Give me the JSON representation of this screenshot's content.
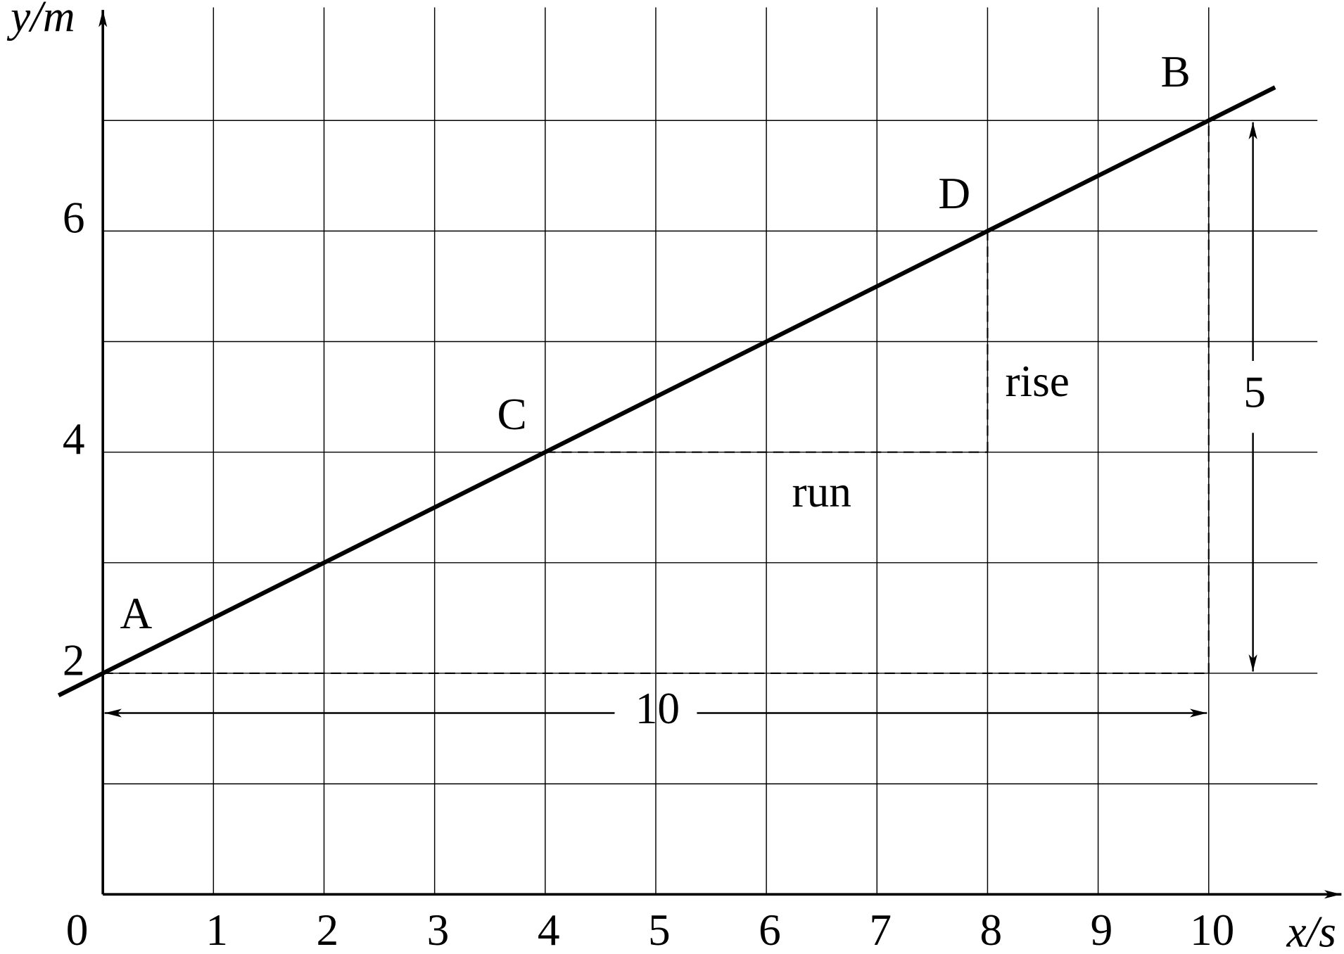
{
  "chart_data": {
    "type": "line",
    "x_label": "x/s",
    "y_label": "y/m",
    "x": [
      -0.4,
      0,
      4,
      8,
      10,
      10.6
    ],
    "series": [
      {
        "color": "#000000",
        "values": [
          1.8,
          2,
          4,
          6,
          7,
          7.3
        ]
      }
    ],
    "xlim": [
      0,
      11.2
    ],
    "ylim": [
      0,
      8
    ],
    "xticks": [
      0,
      1,
      2,
      3,
      4,
      5,
      6,
      7,
      8,
      9,
      10
    ],
    "yticks": [
      2,
      4,
      6
    ],
    "minor_yticks": [
      1,
      3,
      5,
      7
    ],
    "grid": true,
    "points": [
      {
        "label": "A",
        "x": 0,
        "y": 2,
        "label_at": [
          0.3,
          2.5
        ]
      },
      {
        "label": "C",
        "x": 4,
        "y": 4,
        "label_at": [
          3.7,
          4.3
        ]
      },
      {
        "label": "D",
        "x": 8,
        "y": 6,
        "label_at": [
          7.7,
          6.3
        ]
      },
      {
        "label": "B",
        "x": 10,
        "y": 7,
        "label_at": [
          9.7,
          7.4
        ]
      }
    ],
    "dashed_segments": [
      [
        [
          0,
          2
        ],
        [
          10,
          2
        ]
      ],
      [
        [
          10,
          2
        ],
        [
          10,
          7
        ]
      ],
      [
        [
          4,
          4
        ],
        [
          8,
          4
        ]
      ],
      [
        [
          8,
          4
        ],
        [
          8,
          6
        ]
      ]
    ],
    "dimensions": [
      {
        "text": "10",
        "from": [
          0,
          1.64
        ],
        "to": [
          10,
          1.64
        ]
      },
      {
        "text": "5",
        "from": [
          10.4,
          2
        ],
        "to": [
          10.4,
          7
        ]
      }
    ],
    "annotations": [
      {
        "text": "rise",
        "at": [
          8.45,
          4.6
        ]
      },
      {
        "text": "run",
        "at": [
          6.5,
          3.6
        ]
      }
    ]
  }
}
